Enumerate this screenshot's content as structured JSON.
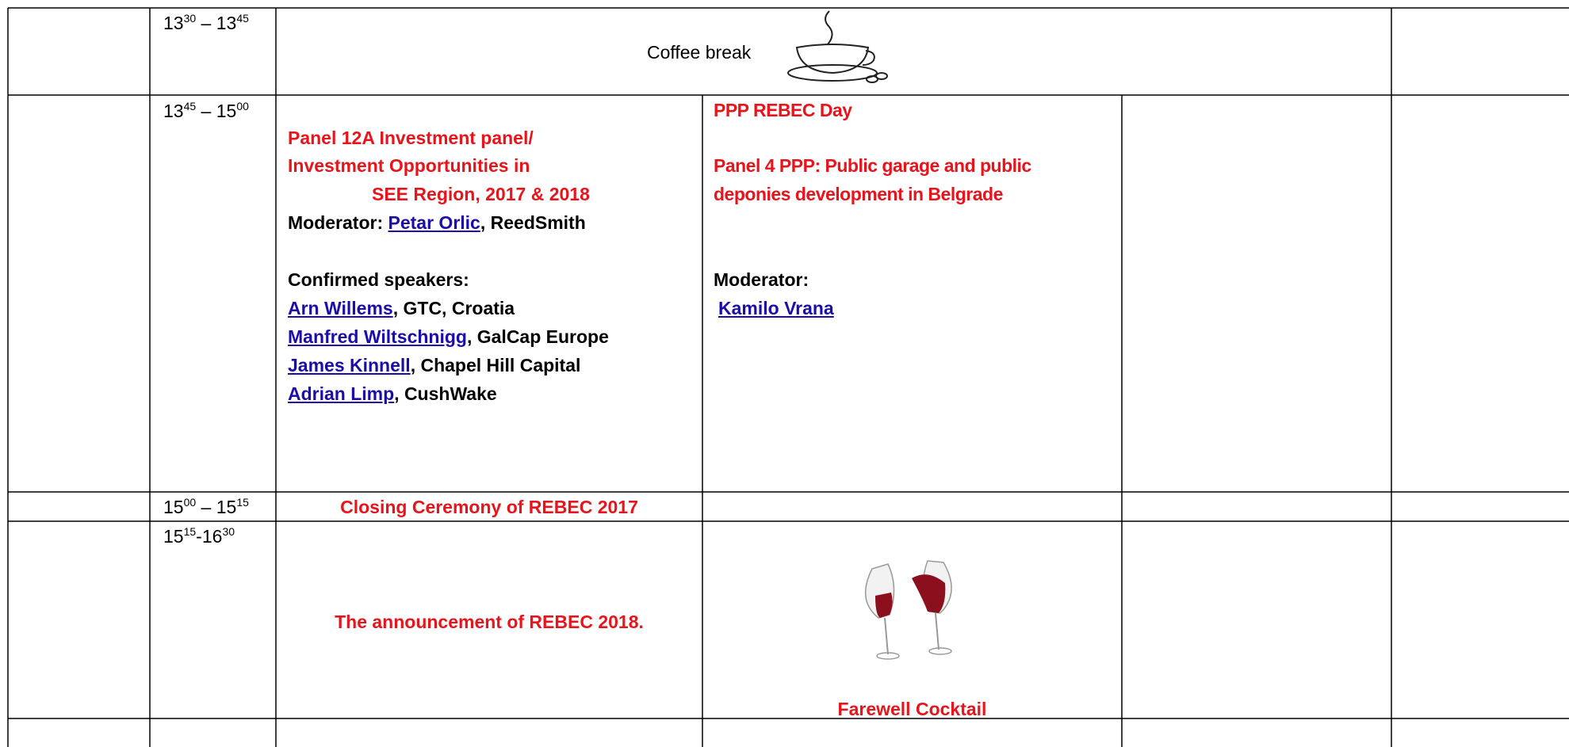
{
  "rows": [
    {
      "time": {
        "h1": "13",
        "m1": "30",
        "sep": " – ",
        "h2": "13",
        "m2": "45"
      },
      "text": "Coffee break"
    },
    {
      "time": {
        "h1": "13",
        "m1": "45",
        "sep": " – ",
        "h2": "15",
        "m2": "00"
      },
      "panel_a": {
        "title_lines": [
          "Panel  12A Investment  panel/",
          "Investment Opportunities in",
          "SEE Region, 2017 & 2018"
        ],
        "moderator_label": "Moderator: ",
        "moderator": {
          "name": "Petar Orlic",
          "affiliation": ", ReedSmith"
        },
        "speakers_label": "Confirmed speakers:",
        "speakers": [
          {
            "name": "Arn Willems",
            "affiliation": ", GTC, Croatia"
          },
          {
            "name": "Manfred Wiltschnigg",
            "affiliation": ", GalCap Europe"
          },
          {
            "name": "James Kinnell",
            "affiliation": ", Chapel Hill Capital"
          },
          {
            "name": "Adrian Limp",
            "affiliation": ", CushWake"
          }
        ]
      },
      "panel_b": {
        "day": "PPP REBEC Day",
        "title_lines": [
          "Panel   4  PPP:  Public garage and public",
          "deponies development  in Belgrade"
        ],
        "moderator_label": "Moderator:",
        "moderator": "Kamilo Vrana"
      }
    },
    {
      "time": {
        "h1": "15",
        "m1": "00",
        "sep": " – ",
        "h2": "15",
        "m2": "15"
      },
      "text": "Closing Ceremony of REBEC 2017"
    },
    {
      "time": {
        "h1": "15",
        "m1": "15",
        "sep": "-",
        "h2": "16",
        "m2": "30"
      },
      "text": "The announcement of REBEC 2018.",
      "text_b": "Farewell Cocktail"
    }
  ]
}
